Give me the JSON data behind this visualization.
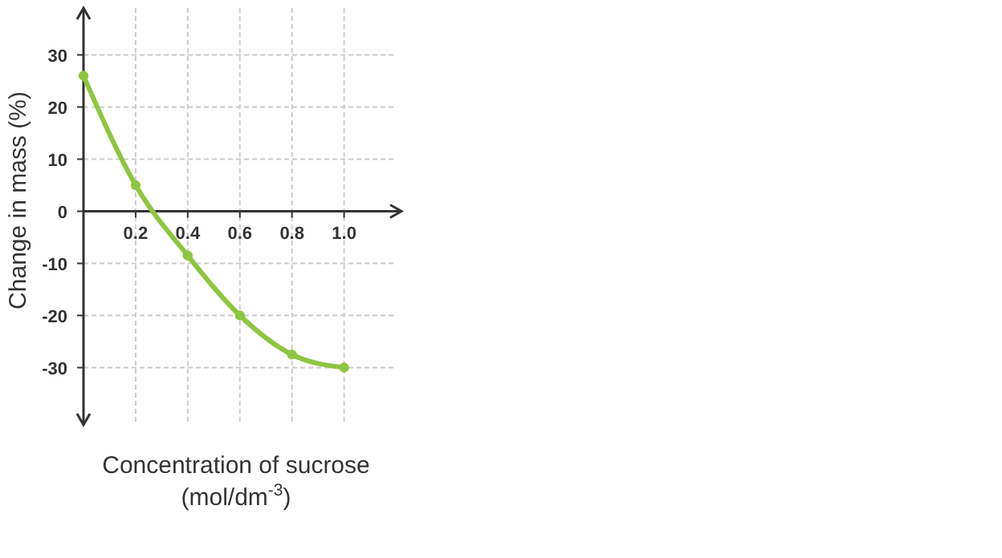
{
  "chart_data": {
    "type": "line",
    "xlabel": "Concentration of sucrose (mol/dm$^{-3}$)",
    "ylabel": "Change in mass (%)",
    "x": [
      0,
      0.2,
      0.4,
      0.6,
      0.8,
      1.0
    ],
    "series": [
      {
        "color": "#8dc63f",
        "values": [
          26,
          5,
          -8.5,
          -20,
          -27.5,
          -30
        ]
      }
    ],
    "xlim": [
      0,
      1.22
    ],
    "xticks": [
      {
        "value": 0.2,
        "label": "0.2"
      },
      {
        "value": 0.4,
        "label": "0.4"
      },
      {
        "value": 0.6,
        "label": "0.6"
      },
      {
        "value": 0.8,
        "label": "0.8"
      },
      {
        "value": 1.0,
        "label": "1.0"
      }
    ],
    "ylim": [
      -41,
      39
    ],
    "yticks": [
      -30,
      -20,
      -10,
      0,
      10,
      20,
      30
    ],
    "grid": true,
    "marker": "circle",
    "line_style": "solid"
  }
}
